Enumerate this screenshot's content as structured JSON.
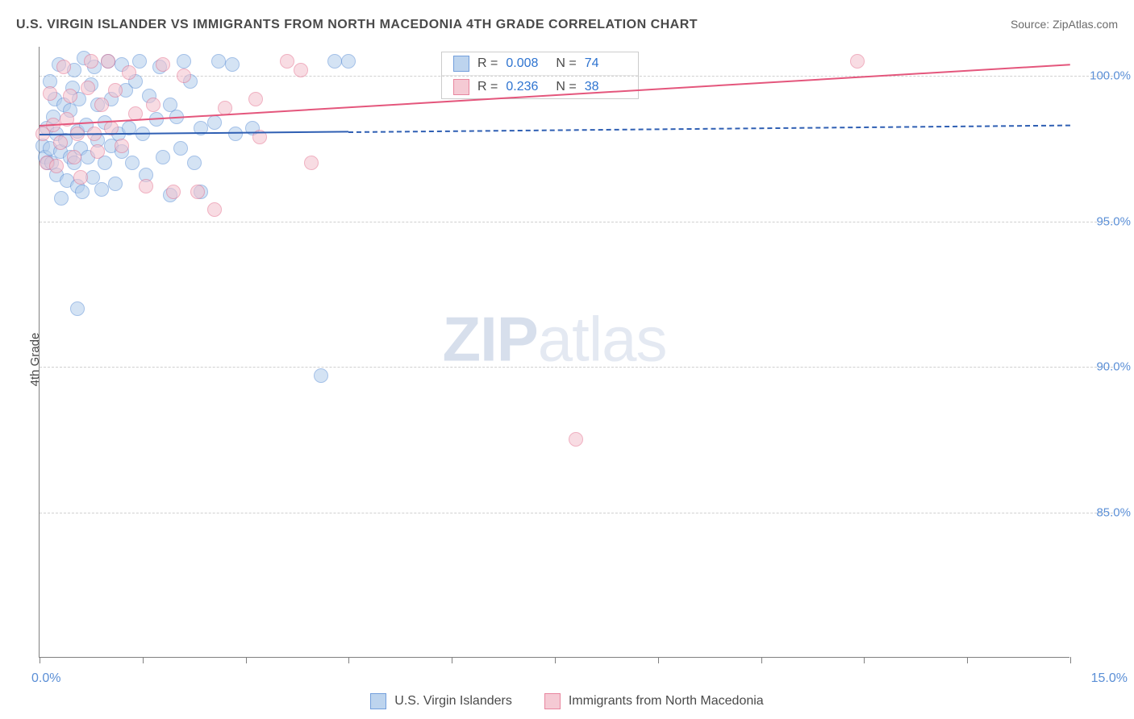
{
  "header": {
    "title": "U.S. VIRGIN ISLANDER VS IMMIGRANTS FROM NORTH MACEDONIA 4TH GRADE CORRELATION CHART",
    "source": "Source: ZipAtlas.com"
  },
  "chart": {
    "type": "scatter",
    "ylabel": "4th Grade",
    "xlim": [
      0,
      15
    ],
    "ylim": [
      80,
      101
    ],
    "xticks": [
      0,
      1.5,
      3,
      4.5,
      6,
      7.5,
      9,
      10.5,
      12,
      13.5,
      15
    ],
    "yticks": [
      {
        "v": 85,
        "label": "85.0%"
      },
      {
        "v": 90,
        "label": "90.0%"
      },
      {
        "v": 95,
        "label": "95.0%"
      },
      {
        "v": 100,
        "label": "100.0%"
      }
    ],
    "xmin_label": "0.0%",
    "xmax_label": "15.0%",
    "background_color": "#ffffff",
    "grid_color": "#d0d0d0",
    "axis_color": "#808080",
    "tick_label_color": "#5b8fd6",
    "point_radius": 9,
    "series": [
      {
        "key": "usvi",
        "name": "U.S. Virgin Islanders",
        "fill": "#b2cdec",
        "stroke": "#5b8fd6",
        "fill_opacity": 0.55,
        "R": "0.008",
        "N": "74",
        "regression": {
          "x1": 0,
          "y1": 98.0,
          "x2": 4.5,
          "y2": 98.1,
          "dash_to_x": 15,
          "color": "#2f5fb3",
          "width": 2.5
        },
        "points": [
          [
            0.05,
            97.6
          ],
          [
            0.08,
            97.2
          ],
          [
            0.1,
            98.2
          ],
          [
            0.12,
            97.0
          ],
          [
            0.15,
            99.8
          ],
          [
            0.15,
            97.5
          ],
          [
            0.18,
            97.0
          ],
          [
            0.2,
            98.6
          ],
          [
            0.22,
            99.2
          ],
          [
            0.25,
            98.0
          ],
          [
            0.25,
            96.6
          ],
          [
            0.28,
            100.4
          ],
          [
            0.3,
            97.4
          ],
          [
            0.32,
            95.8
          ],
          [
            0.35,
            99.0
          ],
          [
            0.38,
            97.8
          ],
          [
            0.4,
            96.4
          ],
          [
            0.45,
            98.8
          ],
          [
            0.45,
            97.2
          ],
          [
            0.48,
            99.6
          ],
          [
            0.5,
            97.0
          ],
          [
            0.5,
            100.2
          ],
          [
            0.55,
            98.1
          ],
          [
            0.55,
            96.2
          ],
          [
            0.58,
            99.2
          ],
          [
            0.6,
            97.5
          ],
          [
            0.55,
            92.0
          ],
          [
            0.62,
            96.0
          ],
          [
            0.65,
            100.6
          ],
          [
            0.68,
            98.3
          ],
          [
            0.7,
            97.2
          ],
          [
            0.75,
            99.7
          ],
          [
            0.78,
            96.5
          ],
          [
            0.8,
            100.3
          ],
          [
            0.85,
            97.8
          ],
          [
            0.85,
            99.0
          ],
          [
            0.9,
            96.1
          ],
          [
            0.95,
            98.4
          ],
          [
            0.95,
            97.0
          ],
          [
            1.0,
            100.5
          ],
          [
            1.05,
            99.2
          ],
          [
            1.05,
            97.6
          ],
          [
            1.1,
            96.3
          ],
          [
            1.15,
            98.0
          ],
          [
            1.2,
            100.4
          ],
          [
            1.2,
            97.4
          ],
          [
            1.25,
            99.5
          ],
          [
            1.3,
            98.2
          ],
          [
            1.35,
            97.0
          ],
          [
            1.4,
            99.8
          ],
          [
            1.45,
            100.5
          ],
          [
            1.5,
            98.0
          ],
          [
            1.55,
            96.6
          ],
          [
            1.6,
            99.3
          ],
          [
            1.7,
            98.5
          ],
          [
            1.75,
            100.3
          ],
          [
            1.8,
            97.2
          ],
          [
            1.9,
            99.0
          ],
          [
            1.9,
            95.9
          ],
          [
            2.0,
            98.6
          ],
          [
            2.05,
            97.5
          ],
          [
            2.1,
            100.5
          ],
          [
            2.2,
            99.8
          ],
          [
            2.25,
            97.0
          ],
          [
            2.35,
            98.2
          ],
          [
            2.35,
            96.0
          ],
          [
            2.55,
            98.4
          ],
          [
            2.6,
            100.5
          ],
          [
            2.8,
            100.4
          ],
          [
            2.85,
            98.0
          ],
          [
            3.1,
            98.2
          ],
          [
            4.1,
            89.7
          ],
          [
            4.5,
            100.5
          ],
          [
            4.3,
            100.5
          ]
        ]
      },
      {
        "key": "nmk",
        "name": "Immigrants from North Macedonia",
        "fill": "#f4c1cd",
        "stroke": "#e4718f",
        "fill_opacity": 0.55,
        "R": "0.236",
        "N": "38",
        "regression": {
          "x1": 0,
          "y1": 98.3,
          "x2": 15,
          "y2": 100.4,
          "color": "#e4567c",
          "width": 2.5
        },
        "points": [
          [
            0.05,
            98.0
          ],
          [
            0.1,
            97.0
          ],
          [
            0.15,
            99.4
          ],
          [
            0.2,
            98.3
          ],
          [
            0.25,
            96.9
          ],
          [
            0.3,
            97.7
          ],
          [
            0.35,
            100.3
          ],
          [
            0.4,
            98.5
          ],
          [
            0.45,
            99.3
          ],
          [
            0.5,
            97.2
          ],
          [
            0.55,
            98.0
          ],
          [
            0.6,
            96.5
          ],
          [
            0.7,
            99.6
          ],
          [
            0.75,
            100.5
          ],
          [
            0.8,
            98.0
          ],
          [
            0.85,
            97.4
          ],
          [
            0.9,
            99.0
          ],
          [
            1.0,
            100.5
          ],
          [
            1.05,
            98.2
          ],
          [
            1.1,
            99.5
          ],
          [
            1.2,
            97.6
          ],
          [
            1.3,
            100.1
          ],
          [
            1.4,
            98.7
          ],
          [
            1.55,
            96.2
          ],
          [
            1.65,
            99.0
          ],
          [
            1.8,
            100.4
          ],
          [
            1.95,
            96.0
          ],
          [
            2.1,
            100.0
          ],
          [
            2.3,
            96.0
          ],
          [
            2.55,
            95.4
          ],
          [
            2.7,
            98.9
          ],
          [
            3.15,
            99.2
          ],
          [
            3.2,
            97.9
          ],
          [
            3.6,
            100.5
          ],
          [
            3.8,
            100.2
          ],
          [
            3.95,
            97.0
          ],
          [
            7.8,
            87.5
          ],
          [
            11.9,
            100.5
          ]
        ]
      }
    ],
    "watermark": {
      "zip": "ZIP",
      "atlas": "atlas"
    }
  },
  "bottom_legend": {
    "items": [
      {
        "key": "usvi",
        "label": "U.S. Virgin Islanders"
      },
      {
        "key": "nmk",
        "label": "Immigrants from North Macedonia"
      }
    ]
  }
}
